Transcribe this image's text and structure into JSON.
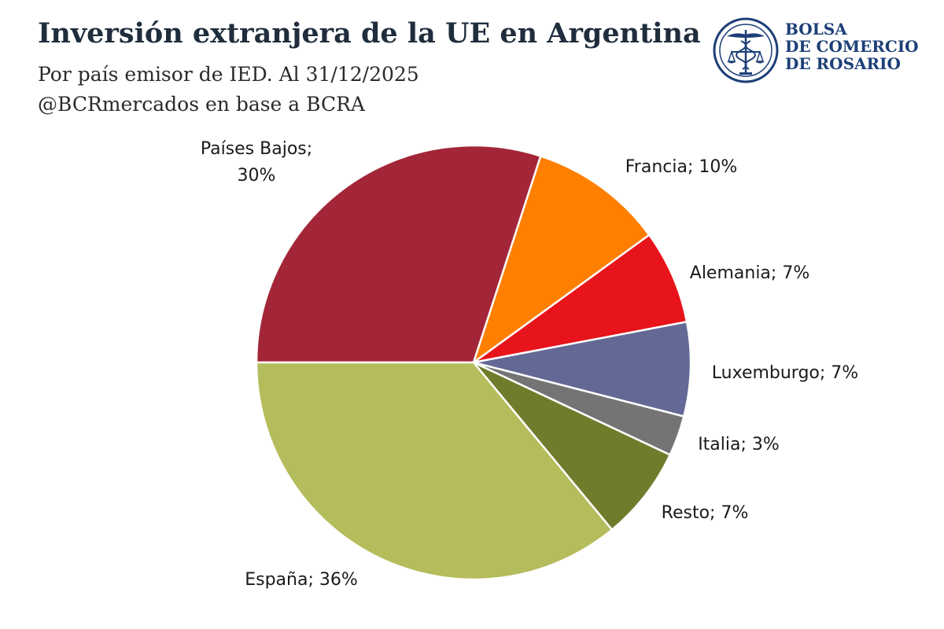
{
  "header": {
    "title": "Inversión extranjera de la UE en Argentina",
    "subtitle": "Por país emisor de IED. Al 31/12/2025",
    "source": "@BCRmercados en base a BCRA"
  },
  "logo": {
    "line1": "BOLSA",
    "line2": "DE COMERCIO",
    "line3": "DE ROSARIO",
    "color": "#1c3f77",
    "icon": "caduceus-scales-seal-icon"
  },
  "chart_data": {
    "type": "pie",
    "start": "horizontal-left, clockwise",
    "slices": [
      {
        "label": "Países Bajos",
        "value": 30,
        "color": "#a32638",
        "text": "Países Bajos;\n30%"
      },
      {
        "label": "Francia",
        "value": 10,
        "color": "#ff7f00",
        "text": "Francia; 10%"
      },
      {
        "label": "Alemania",
        "value": 7,
        "color": "#e8141b",
        "text": "Alemania; 7%"
      },
      {
        "label": "Luxemburgo",
        "value": 7,
        "color": "#636994",
        "text": "Luxemburgo; 7%"
      },
      {
        "label": "Italia",
        "value": 3,
        "color": "#747474",
        "text": "Italia; 3%"
      },
      {
        "label": "Resto",
        "value": 7,
        "color": "#707c2c",
        "text": "Resto; 7%"
      },
      {
        "label": "España",
        "value": 36,
        "color": "#b5bc5c",
        "text": "España; 36%"
      }
    ]
  }
}
